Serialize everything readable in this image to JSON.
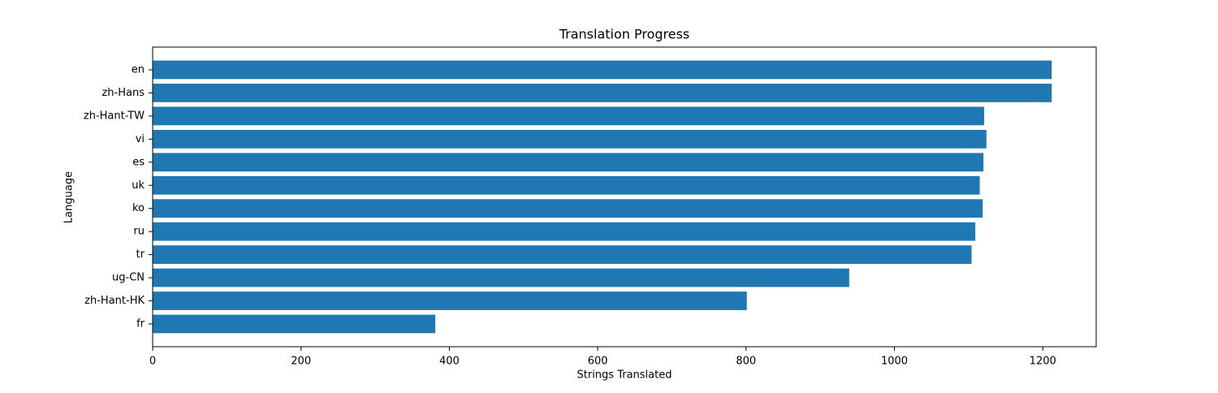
{
  "chart_data": {
    "type": "barh",
    "title": "Translation Progress",
    "x_label": "Strings Translated",
    "y_label": "Language",
    "categories": [
      "en",
      "zh-Hans",
      "zh-Hant-TW",
      "vi",
      "es",
      "uk",
      "ko",
      "ru",
      "tr",
      "ug-CN",
      "zh-Hant-HK",
      "fr"
    ],
    "values": [
      1212,
      1212,
      1121,
      1124,
      1120,
      1115,
      1119,
      1109,
      1104,
      939,
      801,
      381
    ],
    "color": "#1f77b4",
    "xlim": [
      0,
      1272
    ],
    "xticks": [
      0,
      200,
      400,
      600,
      800,
      1000,
      1200
    ],
    "grid": false
  }
}
